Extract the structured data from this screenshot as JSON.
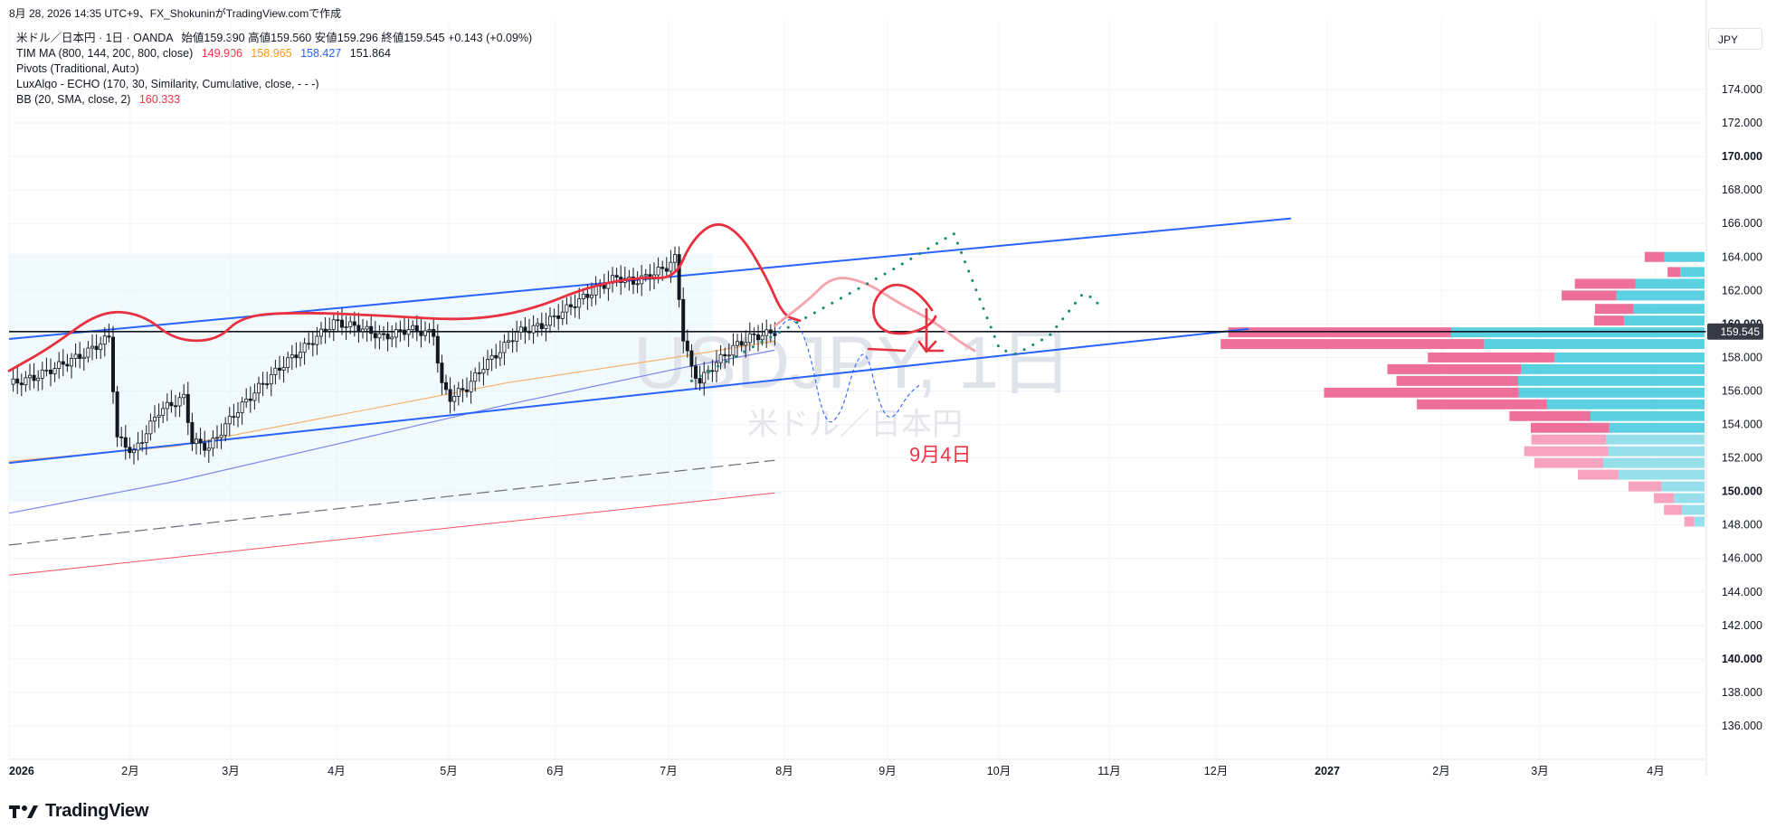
{
  "header": {
    "text": "8月 28, 2026 14:35 UTC+9、FX_ShokuninがTradingView.comで作成"
  },
  "legend": {
    "symbol": "米ドル／日本円 · 1日 · OANDA",
    "ohlc": "始値159.390  高値159.560  安値159.296  終値159.545  +0.143 (+0.09%)",
    "tim_ma": {
      "label": "TIM MA (800, 144, 200, 800, close)",
      "v1": "149.906",
      "v2": "158.965",
      "v3": "158.427",
      "v4": "151.864",
      "c1": "#f23645",
      "c2": "#ff9800",
      "c3": "#2962ff",
      "c4": "#131722"
    },
    "pivots": "Pivots (Traditional, Auto)",
    "echo": "LuxAlgo - ECHO (170, 30, Similarity, Cumulative, close, - - -)",
    "bb": {
      "label": "BB (20, SMA, close, 2)",
      "value": "160.333",
      "color": "#f23645"
    }
  },
  "currency": "JPY",
  "watermark": {
    "symbol": "USDJPY, 1日",
    "name": "米ドル／日本円"
  },
  "annotation": {
    "text": "9月4日",
    "color": "#f23645"
  },
  "footer": {
    "brand": "TradingView"
  },
  "chart_data": {
    "type": "candlestick",
    "symbol": "USDJPY",
    "timeframe": "1日",
    "currency": "JPY",
    "y_axis": {
      "range": [
        135,
        177
      ],
      "ticks": [
        "174.000",
        "172.000",
        "170.000",
        "168.000",
        "166.000",
        "164.000",
        "162.000",
        "160.000",
        "158.000",
        "156.000",
        "154.000",
        "152.000",
        "150.000",
        "148.000",
        "146.000",
        "144.000",
        "142.000",
        "140.000",
        "138.000",
        "136.000"
      ],
      "bold": [
        "170.000",
        "160.000",
        "150.000",
        "140.000"
      ]
    },
    "x_axis": {
      "labels": [
        "2026",
        "2月",
        "3月",
        "4月",
        "5月",
        "6月",
        "7月",
        "8月",
        "9月",
        "10月",
        "11月",
        "12月",
        "2027",
        "2月",
        "3月",
        "4月"
      ]
    },
    "last_price": {
      "value": 159.545,
      "label": "159.545"
    },
    "candles_path": [
      [
        0,
        156.4
      ],
      [
        6,
        156.8
      ],
      [
        12,
        157.5
      ],
      [
        18,
        158.2
      ],
      [
        24,
        159.2
      ],
      [
        26,
        153.2
      ],
      [
        30,
        152.3
      ],
      [
        36,
        154.8
      ],
      [
        42,
        155.6
      ],
      [
        44,
        153.0
      ],
      [
        48,
        152.6
      ],
      [
        54,
        154.6
      ],
      [
        60,
        156.2
      ],
      [
        66,
        157.6
      ],
      [
        72,
        158.8
      ],
      [
        78,
        160.1
      ],
      [
        84,
        159.8
      ],
      [
        90,
        159.2
      ],
      [
        96,
        159.7
      ],
      [
        102,
        159.4
      ],
      [
        104,
        156.3
      ],
      [
        106,
        155.6
      ],
      [
        110,
        156.2
      ],
      [
        114,
        157.5
      ],
      [
        118,
        158.4
      ],
      [
        122,
        159.5
      ],
      [
        128,
        159.9
      ],
      [
        134,
        160.9
      ],
      [
        140,
        161.9
      ],
      [
        146,
        162.8
      ],
      [
        150,
        162.5
      ],
      [
        154,
        162.9
      ],
      [
        158,
        163.4
      ],
      [
        160,
        163.9
      ],
      [
        162,
        159.2
      ],
      [
        164,
        157.3
      ],
      [
        166,
        156.6
      ],
      [
        170,
        157.7
      ],
      [
        174,
        158.6
      ],
      [
        178,
        159.2
      ],
      [
        182,
        159.4
      ],
      [
        184,
        159.545
      ]
    ],
    "channel": {
      "upper": [
        [
          0,
          159.1
        ],
        [
          270,
          166.3
        ]
      ],
      "lower": [
        [
          0,
          151.7
        ],
        [
          270,
          159.9
        ]
      ]
    },
    "horizontal_line": 159.545,
    "ma_orange": [
      [
        0,
        151.8
      ],
      [
        40,
        152.7
      ],
      [
        80,
        154.6
      ],
      [
        120,
        156.5
      ],
      [
        160,
        158.0
      ],
      [
        184,
        158.97
      ]
    ],
    "ma_blue": [
      [
        0,
        148.7
      ],
      [
        40,
        150.6
      ],
      [
        80,
        152.9
      ],
      [
        120,
        155.2
      ],
      [
        160,
        157.3
      ],
      [
        184,
        158.43
      ]
    ],
    "ma_dashed": [
      [
        0,
        146.8
      ],
      [
        184,
        151.86
      ]
    ],
    "ma_red": [
      [
        0,
        145.0
      ],
      [
        184,
        149.91
      ]
    ],
    "bb_upper_red": [
      [
        0,
        157.2
      ],
      [
        10,
        158.6
      ],
      [
        22,
        160.8
      ],
      [
        32,
        160.6
      ],
      [
        40,
        159.0
      ],
      [
        50,
        159.0
      ],
      [
        56,
        160.5
      ],
      [
        70,
        160.7
      ],
      [
        90,
        160.5
      ],
      [
        110,
        160.2
      ],
      [
        125,
        160.8
      ],
      [
        140,
        162.3
      ],
      [
        152,
        162.8
      ],
      [
        160,
        162.7
      ],
      [
        164,
        165.0
      ],
      [
        170,
        166.2
      ],
      [
        176,
        165.3
      ],
      [
        182,
        162.8
      ],
      [
        186,
        160.5
      ],
      [
        190,
        160.2
      ]
    ],
    "forecast_pink": [
      [
        184,
        159.9
      ],
      [
        192,
        161.4
      ],
      [
        198,
        162.9
      ],
      [
        206,
        162.5
      ],
      [
        214,
        161.2
      ],
      [
        222,
        160.2
      ],
      [
        228,
        159.0
      ],
      [
        232,
        158.4
      ]
    ],
    "forecast_blue_dashed": [
      [
        184,
        159.4
      ],
      [
        188,
        160.6
      ],
      [
        192,
        158.9
      ],
      [
        196,
        153.8
      ],
      [
        200,
        154.6
      ],
      [
        203,
        157.5
      ],
      [
        206,
        158.6
      ],
      [
        209,
        155.2
      ],
      [
        212,
        154.1
      ],
      [
        216,
        155.8
      ],
      [
        219,
        156.4
      ]
    ],
    "forecast_green_dotted": [
      [
        164,
        156.6
      ],
      [
        180,
        158.8
      ],
      [
        196,
        161.0
      ],
      [
        212,
        163.2
      ],
      [
        227,
        165.4
      ],
      [
        238,
        158.5
      ],
      [
        242,
        158.2
      ],
      [
        250,
        159.3
      ],
      [
        258,
        161.8
      ],
      [
        261,
        161.5
      ],
      [
        262,
        161.0
      ]
    ],
    "volume_profile": [
      {
        "price": 164.0,
        "pink": 0.039,
        "cyan": 0.079
      },
      {
        "price": 163.1,
        "pink": 0.025,
        "cyan": 0.048
      },
      {
        "price": 162.4,
        "pink": 0.12,
        "cyan": 0.136
      },
      {
        "price": 161.7,
        "pink": 0.108,
        "cyan": 0.174
      },
      {
        "price": 160.9,
        "pink": 0.076,
        "cyan": 0.14
      },
      {
        "price": 160.2,
        "pink": 0.059,
        "cyan": 0.159
      },
      {
        "price": 159.5,
        "pink": 0.44,
        "cyan": 0.5
      },
      {
        "price": 158.8,
        "pink": 0.52,
        "cyan": 0.435
      },
      {
        "price": 158.0,
        "pink": 0.25,
        "cyan": 0.296
      },
      {
        "price": 157.3,
        "pink": 0.264,
        "cyan": 0.362
      },
      {
        "price": 156.6,
        "pink": 0.24,
        "cyan": 0.368
      },
      {
        "price": 155.9,
        "pink": 0.384,
        "cyan": 0.367
      },
      {
        "price": 155.2,
        "pink": 0.257,
        "cyan": 0.311
      },
      {
        "price": 154.5,
        "pink": 0.16,
        "cyan": 0.225
      },
      {
        "price": 153.8,
        "pink": 0.155,
        "cyan": 0.188
      },
      {
        "price": 153.1,
        "pink": 0.148,
        "cyan": 0.194
      },
      {
        "price": 152.4,
        "pink": 0.166,
        "cyan": 0.19
      },
      {
        "price": 151.7,
        "pink": 0.136,
        "cyan": 0.2
      },
      {
        "price": 151.0,
        "pink": 0.08,
        "cyan": 0.17
      },
      {
        "price": 150.3,
        "pink": 0.065,
        "cyan": 0.085
      },
      {
        "price": 149.6,
        "pink": 0.04,
        "cyan": 0.06
      },
      {
        "price": 148.9,
        "pink": 0.035,
        "cyan": 0.045
      },
      {
        "price": 148.2,
        "pink": 0.02,
        "cyan": 0.02
      }
    ]
  }
}
